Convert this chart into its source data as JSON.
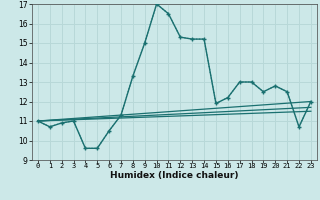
{
  "xlabel": "Humidex (Indice chaleur)",
  "bg_color": "#cce8e8",
  "grid_color": "#b8d8d8",
  "line_color": "#1a7070",
  "xlim": [
    -0.5,
    23.5
  ],
  "ylim": [
    9,
    17
  ],
  "yticks": [
    9,
    10,
    11,
    12,
    13,
    14,
    15,
    16,
    17
  ],
  "xticks": [
    0,
    1,
    2,
    3,
    4,
    5,
    6,
    7,
    8,
    9,
    10,
    11,
    12,
    13,
    14,
    15,
    16,
    17,
    18,
    19,
    20,
    21,
    22,
    23
  ],
  "solid_x": [
    0,
    1,
    2,
    3,
    4,
    5,
    6,
    7,
    8,
    9,
    10,
    11,
    12,
    13,
    14,
    15,
    16,
    17,
    18,
    19,
    20,
    21,
    22,
    23
  ],
  "solid_y": [
    11.0,
    10.7,
    10.9,
    11.0,
    9.6,
    9.6,
    10.5,
    11.3,
    13.3,
    15.0,
    17.0,
    16.5,
    15.3,
    15.2,
    15.2,
    11.9,
    12.2,
    13.0,
    13.0,
    12.5,
    12.8,
    12.5,
    10.7,
    12.0
  ],
  "dotted_x": [
    0,
    1,
    2,
    3,
    4,
    5,
    6,
    7,
    8,
    9,
    10,
    11,
    12,
    13,
    14,
    15,
    16,
    17,
    18,
    19,
    20,
    21,
    22,
    23
  ],
  "dotted_y": [
    11.0,
    10.7,
    10.9,
    11.0,
    9.6,
    9.6,
    10.5,
    11.3,
    13.3,
    15.0,
    17.0,
    16.5,
    15.3,
    15.2,
    15.2,
    11.9,
    12.2,
    13.0,
    13.0,
    12.5,
    12.8,
    12.5,
    10.7,
    12.0
  ],
  "trend1_x": [
    0,
    23
  ],
  "trend1_y": [
    11.0,
    12.0
  ],
  "trend2_x": [
    0,
    23
  ],
  "trend2_y": [
    11.0,
    11.7
  ],
  "trend3_x": [
    0,
    23
  ],
  "trend3_y": [
    11.0,
    11.5
  ]
}
